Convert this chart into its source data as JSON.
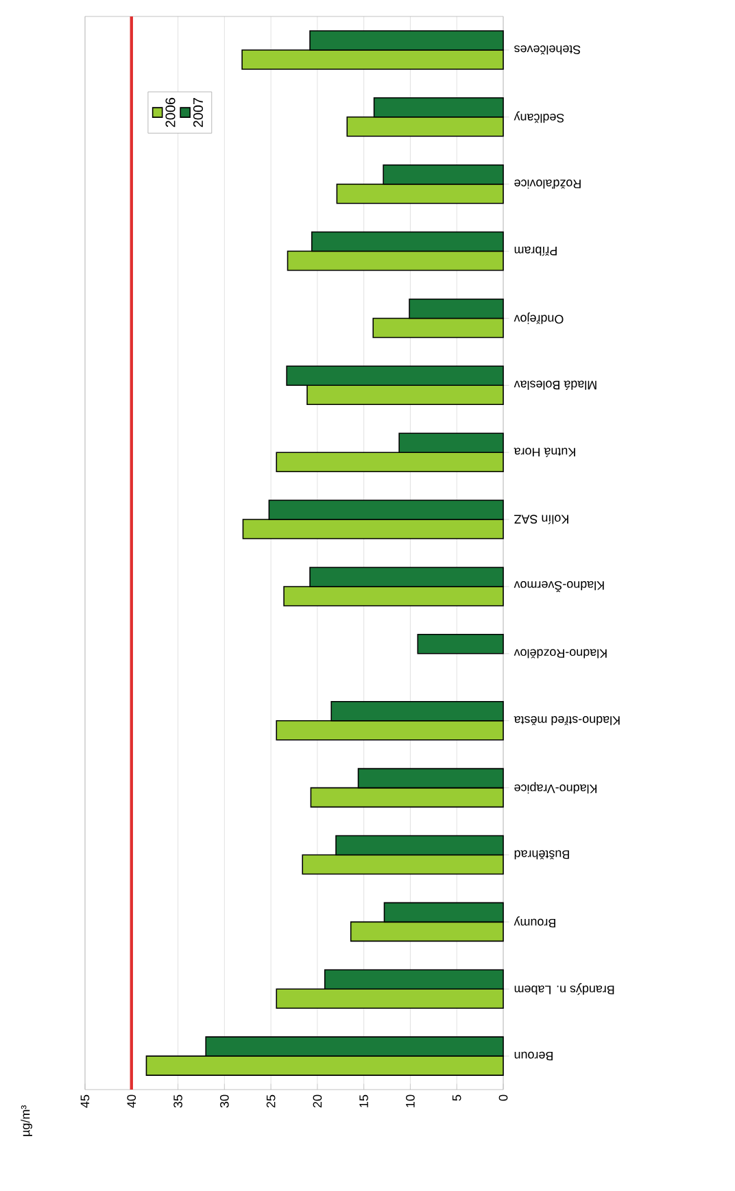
{
  "chart_data": {
    "type": "bar",
    "orientation": "horizontal",
    "ylabel": "µg/m³",
    "categories": [
      "Stehelčeves",
      "Sedlčany",
      "Rožďalovice",
      "Příbram",
      "Ondřejov",
      "Mladá Boleslav",
      "Kutná Hora",
      "Kolín SAZ",
      "Kladno-Švermov",
      "Kladno-Rozdělov",
      "Kladno-střed města",
      "Kladno-Vrapice",
      "Buštěhrad",
      "Broumy",
      "Brandýs n. Labem",
      "Beroun"
    ],
    "series": [
      {
        "name": "2006",
        "color": "#99cc33",
        "values": [
          28.1,
          16.8,
          17.9,
          23.2,
          14.0,
          21.1,
          24.4,
          28.0,
          23.6,
          null,
          24.4,
          20.7,
          21.6,
          16.4,
          24.4,
          38.4
        ]
      },
      {
        "name": "2007",
        "color": "#1a7a3a",
        "values": [
          20.8,
          13.9,
          12.9,
          20.6,
          10.1,
          23.3,
          11.2,
          25.2,
          20.8,
          9.2,
          18.5,
          15.6,
          18.0,
          12.8,
          19.2,
          32.0
        ]
      }
    ],
    "xlim": [
      45,
      0
    ],
    "xticks": [
      45,
      40,
      35,
      30,
      25,
      20,
      15,
      10,
      5,
      0
    ],
    "ref_lines": [
      {
        "axis": "x",
        "value": 40,
        "color": "#e03030"
      }
    ],
    "grid": "x",
    "legend": "top left"
  }
}
